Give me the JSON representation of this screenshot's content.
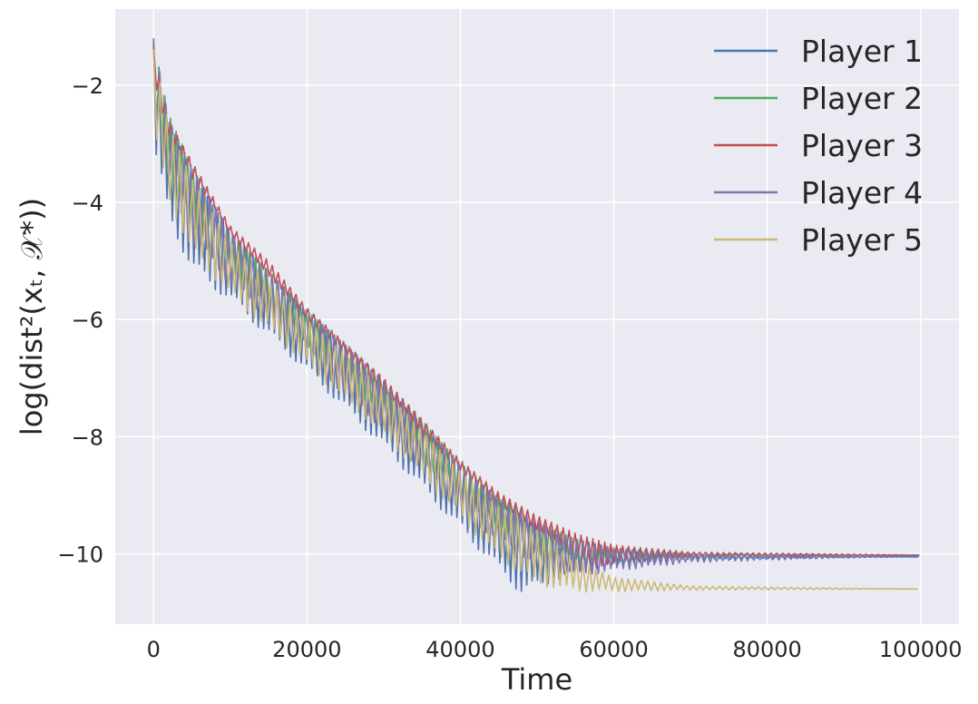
{
  "chart_data": {
    "type": "line",
    "title": "",
    "xlabel": "Time",
    "ylabel": "log(dist²(xₜ, 𝒳*))",
    "xlim": [
      -5000,
      105000
    ],
    "ylim": [
      -11.2,
      -0.7
    ],
    "xticks": [
      0,
      20000,
      40000,
      60000,
      80000,
      100000
    ],
    "xtick_labels": [
      "0",
      "20000",
      "40000",
      "60000",
      "80000",
      "100000"
    ],
    "yticks": [
      -2,
      -4,
      -6,
      -8,
      -10
    ],
    "ytick_labels": [
      "−2",
      "−4",
      "−6",
      "−8",
      "−10"
    ],
    "grid": true,
    "legend_position": "top-right",
    "series": [
      {
        "name": "Player 1",
        "color": "#4c72b0",
        "upper": [
          [
            0,
            -1.2
          ],
          [
            2000,
            -2.6
          ],
          [
            5000,
            -3.5
          ],
          [
            10000,
            -4.5
          ],
          [
            20000,
            -5.9
          ],
          [
            30000,
            -7.1
          ],
          [
            40000,
            -8.5
          ],
          [
            45000,
            -9.1
          ],
          [
            50000,
            -9.5
          ],
          [
            55000,
            -9.85
          ],
          [
            60000,
            -9.95
          ],
          [
            70000,
            -10.0
          ],
          [
            80000,
            -10.03
          ],
          [
            100000,
            -10.05
          ]
        ],
        "lower": [
          [
            0,
            -3.2
          ],
          [
            2000,
            -4.3
          ],
          [
            5000,
            -5.2
          ],
          [
            10000,
            -5.7
          ],
          [
            20000,
            -6.9
          ],
          [
            30000,
            -8.2
          ],
          [
            40000,
            -9.6
          ],
          [
            45000,
            -10.3
          ],
          [
            48000,
            -10.7
          ],
          [
            50000,
            -10.6
          ],
          [
            52000,
            -10.5
          ],
          [
            55000,
            -10.35
          ],
          [
            60000,
            -10.2
          ],
          [
            70000,
            -10.1
          ],
          [
            100000,
            -10.05
          ]
        ],
        "end": -10.05
      },
      {
        "name": "Player 2",
        "color": "#55a868",
        "upper": [
          [
            0,
            -1.3
          ],
          [
            2000,
            -2.5
          ],
          [
            5000,
            -3.4
          ],
          [
            10000,
            -4.5
          ],
          [
            20000,
            -5.85
          ],
          [
            30000,
            -7.0
          ],
          [
            40000,
            -8.45
          ],
          [
            45000,
            -9.0
          ],
          [
            50000,
            -9.45
          ],
          [
            55000,
            -9.75
          ],
          [
            60000,
            -9.9
          ],
          [
            70000,
            -10.0
          ],
          [
            100000,
            -10.02
          ]
        ],
        "lower": [
          [
            0,
            -2.6
          ],
          [
            2000,
            -3.5
          ],
          [
            5000,
            -4.5
          ],
          [
            10000,
            -5.2
          ],
          [
            20000,
            -6.5
          ],
          [
            30000,
            -7.7
          ],
          [
            40000,
            -9.1
          ],
          [
            45000,
            -9.6
          ],
          [
            50000,
            -10.0
          ],
          [
            55000,
            -10.25
          ],
          [
            60000,
            -10.15
          ],
          [
            70000,
            -10.07
          ],
          [
            100000,
            -10.02
          ]
        ],
        "end": -10.02
      },
      {
        "name": "Player 3",
        "color": "#c44e52",
        "upper": [
          [
            0,
            -1.3
          ],
          [
            2000,
            -2.6
          ],
          [
            5000,
            -3.3
          ],
          [
            10000,
            -4.4
          ],
          [
            15000,
            -5.0
          ],
          [
            20000,
            -5.8
          ],
          [
            25000,
            -6.4
          ],
          [
            30000,
            -7.0
          ],
          [
            35000,
            -7.7
          ],
          [
            40000,
            -8.4
          ],
          [
            45000,
            -8.95
          ],
          [
            50000,
            -9.35
          ],
          [
            55000,
            -9.65
          ],
          [
            60000,
            -9.85
          ],
          [
            70000,
            -9.97
          ],
          [
            100000,
            -10.02
          ]
        ],
        "lower": [
          [
            0,
            -1.9
          ],
          [
            2000,
            -2.9
          ],
          [
            5000,
            -3.6
          ],
          [
            10000,
            -4.6
          ],
          [
            15000,
            -5.25
          ],
          [
            20000,
            -6.0
          ],
          [
            25000,
            -6.65
          ],
          [
            30000,
            -7.25
          ],
          [
            35000,
            -7.95
          ],
          [
            40000,
            -8.65
          ],
          [
            45000,
            -9.2
          ],
          [
            50000,
            -9.6
          ],
          [
            55000,
            -10.05
          ],
          [
            57000,
            -10.25
          ],
          [
            60000,
            -10.15
          ],
          [
            70000,
            -10.05
          ],
          [
            100000,
            -10.02
          ]
        ],
        "end": -10.02
      },
      {
        "name": "Player 4",
        "color": "#8172b2",
        "upper": [
          [
            0,
            -1.2
          ],
          [
            2000,
            -2.6
          ],
          [
            5000,
            -3.4
          ],
          [
            10000,
            -4.5
          ],
          [
            20000,
            -5.85
          ],
          [
            30000,
            -7.05
          ],
          [
            40000,
            -8.5
          ],
          [
            45000,
            -9.05
          ],
          [
            50000,
            -9.45
          ],
          [
            55000,
            -9.75
          ],
          [
            60000,
            -9.9
          ],
          [
            70000,
            -10.0
          ],
          [
            100000,
            -10.03
          ]
        ],
        "lower": [
          [
            0,
            -2.8
          ],
          [
            2000,
            -3.7
          ],
          [
            5000,
            -4.7
          ],
          [
            10000,
            -5.4
          ],
          [
            20000,
            -6.7
          ],
          [
            30000,
            -7.9
          ],
          [
            40000,
            -9.3
          ],
          [
            45000,
            -9.8
          ],
          [
            50000,
            -10.2
          ],
          [
            55000,
            -10.4
          ],
          [
            60000,
            -10.3
          ],
          [
            70000,
            -10.15
          ],
          [
            100000,
            -10.03
          ]
        ],
        "end": -10.03
      },
      {
        "name": "Player 5",
        "color": "#ccb974",
        "upper": [
          [
            0,
            -1.4
          ],
          [
            2000,
            -2.7
          ],
          [
            5000,
            -3.6
          ],
          [
            10000,
            -4.7
          ],
          [
            20000,
            -6.0
          ],
          [
            30000,
            -7.2
          ],
          [
            40000,
            -8.6
          ],
          [
            45000,
            -9.2
          ],
          [
            50000,
            -9.6
          ],
          [
            55000,
            -10.1
          ],
          [
            60000,
            -10.4
          ],
          [
            70000,
            -10.55
          ],
          [
            100000,
            -10.6
          ]
        ],
        "lower": [
          [
            0,
            -2.9
          ],
          [
            2000,
            -4.0
          ],
          [
            5000,
            -4.9
          ],
          [
            10000,
            -5.6
          ],
          [
            20000,
            -6.8
          ],
          [
            30000,
            -8.0
          ],
          [
            40000,
            -9.4
          ],
          [
            45000,
            -10.1
          ],
          [
            50000,
            -10.55
          ],
          [
            55000,
            -10.65
          ],
          [
            60000,
            -10.65
          ],
          [
            70000,
            -10.62
          ],
          [
            100000,
            -10.6
          ]
        ],
        "end": -10.6
      }
    ]
  }
}
